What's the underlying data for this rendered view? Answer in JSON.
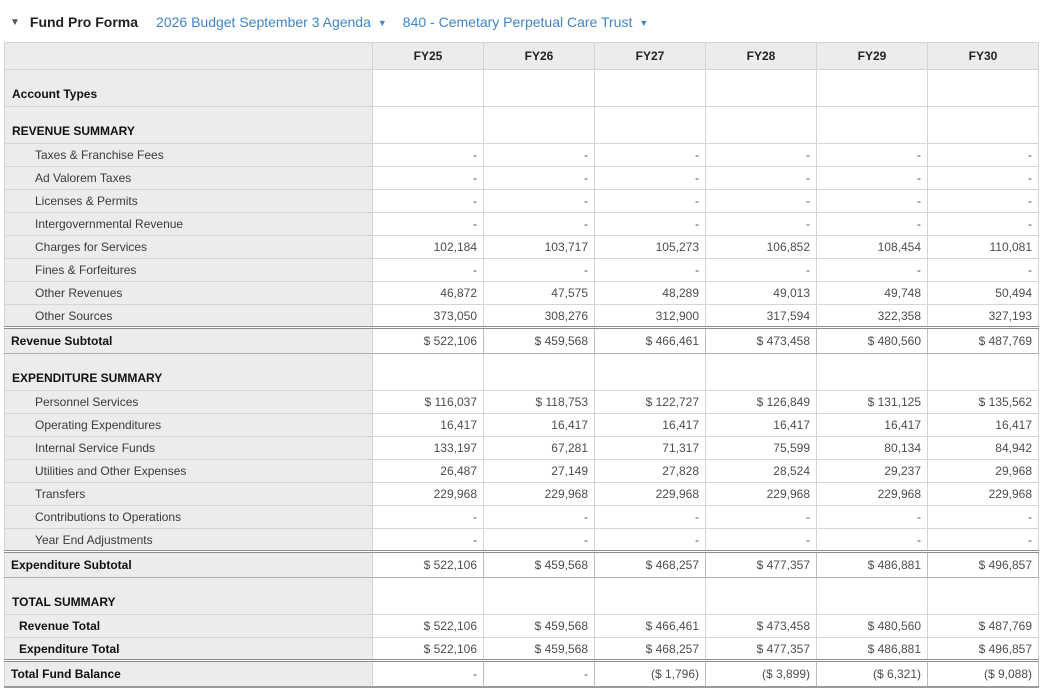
{
  "header": {
    "collapse_icon": "triangle-down",
    "title": "Fund Pro Forma",
    "budget_dropdown": {
      "label": "2026 Budget September 3 Agenda",
      "icon": "triangle-down"
    },
    "fund_dropdown": {
      "label": "840 - Cemetary Perpetual Care Trust",
      "icon": "triangle-down"
    }
  },
  "colors": {
    "accent_blue": "#3e86c8",
    "header_row_bg": "#ececec",
    "label_column_bg": "#ececec",
    "grid_border": "#d5d5d5",
    "strong_border": "#8d8d8d"
  },
  "table": {
    "columns": [
      "FY25",
      "FY26",
      "FY27",
      "FY28",
      "FY29",
      "FY30"
    ],
    "rows": [
      {
        "label": "Account Types",
        "style": "section",
        "values": [
          "",
          "",
          "",
          "",
          "",
          ""
        ]
      },
      {
        "label": "REVENUE SUMMARY",
        "style": "section",
        "values": [
          "",
          "",
          "",
          "",
          "",
          ""
        ]
      },
      {
        "label": "Taxes & Franchise Fees",
        "style": "detail",
        "values": [
          "-",
          "-",
          "-",
          "-",
          "-",
          "-"
        ]
      },
      {
        "label": "Ad Valorem Taxes",
        "style": "detail",
        "values": [
          "-",
          "-",
          "-",
          "-",
          "-",
          "-"
        ]
      },
      {
        "label": "Licenses & Permits",
        "style": "detail",
        "values": [
          "-",
          "-",
          "-",
          "-",
          "-",
          "-"
        ]
      },
      {
        "label": "Intergovernmental Revenue",
        "style": "detail",
        "values": [
          "-",
          "-",
          "-",
          "-",
          "-",
          "-"
        ]
      },
      {
        "label": "Charges for Services",
        "style": "detail",
        "values": [
          "102,184",
          "103,717",
          "105,273",
          "106,852",
          "108,454",
          "110,081"
        ]
      },
      {
        "label": "Fines & Forfeitures",
        "style": "detail",
        "values": [
          "-",
          "-",
          "-",
          "-",
          "-",
          "-"
        ]
      },
      {
        "label": "Other Revenues",
        "style": "detail",
        "values": [
          "46,872",
          "47,575",
          "48,289",
          "49,013",
          "49,748",
          "50,494"
        ]
      },
      {
        "label": "Other Sources",
        "style": "detail",
        "values": [
          "373,050",
          "308,276",
          "312,900",
          "317,594",
          "322,358",
          "327,193"
        ]
      },
      {
        "label": "Revenue Subtotal",
        "style": "subtotal",
        "values": [
          "$ 522,106",
          "$ 459,568",
          "$ 466,461",
          "$ 473,458",
          "$ 480,560",
          "$ 487,769"
        ]
      },
      {
        "label": "EXPENDITURE SUMMARY",
        "style": "section",
        "values": [
          "",
          "",
          "",
          "",
          "",
          ""
        ]
      },
      {
        "label": "Personnel Services",
        "style": "detail",
        "values": [
          "$ 116,037",
          "$ 118,753",
          "$ 122,727",
          "$ 126,849",
          "$ 131,125",
          "$ 135,562"
        ]
      },
      {
        "label": "Operating Expenditures",
        "style": "detail",
        "values": [
          "16,417",
          "16,417",
          "16,417",
          "16,417",
          "16,417",
          "16,417"
        ]
      },
      {
        "label": "Internal Service Funds",
        "style": "detail",
        "values": [
          "133,197",
          "67,281",
          "71,317",
          "75,599",
          "80,134",
          "84,942"
        ]
      },
      {
        "label": "Utilities and Other Expenses",
        "style": "detail",
        "values": [
          "26,487",
          "27,149",
          "27,828",
          "28,524",
          "29,237",
          "29,968"
        ]
      },
      {
        "label": "Transfers",
        "style": "detail",
        "values": [
          "229,968",
          "229,968",
          "229,968",
          "229,968",
          "229,968",
          "229,968"
        ]
      },
      {
        "label": "Contributions to Operations",
        "style": "detail",
        "values": [
          "-",
          "-",
          "-",
          "-",
          "-",
          "-"
        ]
      },
      {
        "label": "Year End Adjustments",
        "style": "detail",
        "values": [
          "-",
          "-",
          "-",
          "-",
          "-",
          "-"
        ]
      },
      {
        "label": "Expenditure Subtotal",
        "style": "subtotal",
        "values": [
          "$ 522,106",
          "$ 459,568",
          "$ 468,257",
          "$ 477,357",
          "$ 486,881",
          "$ 496,857"
        ]
      },
      {
        "label": "TOTAL SUMMARY",
        "style": "section",
        "values": [
          "",
          "",
          "",
          "",
          "",
          ""
        ]
      },
      {
        "label": "Revenue Total",
        "style": "total",
        "values": [
          "$ 522,106",
          "$ 459,568",
          "$ 466,461",
          "$ 473,458",
          "$ 480,560",
          "$ 487,769"
        ]
      },
      {
        "label": "Expenditure Total",
        "style": "total",
        "values": [
          "$ 522,106",
          "$ 459,568",
          "$ 468,257",
          "$ 477,357",
          "$ 486,881",
          "$ 496,857"
        ]
      },
      {
        "label": "Total Fund Balance",
        "style": "grand",
        "values": [
          "-",
          "-",
          "($ 1,796)",
          "($ 3,899)",
          "($ 6,321)",
          "($ 9,088)"
        ]
      }
    ]
  }
}
